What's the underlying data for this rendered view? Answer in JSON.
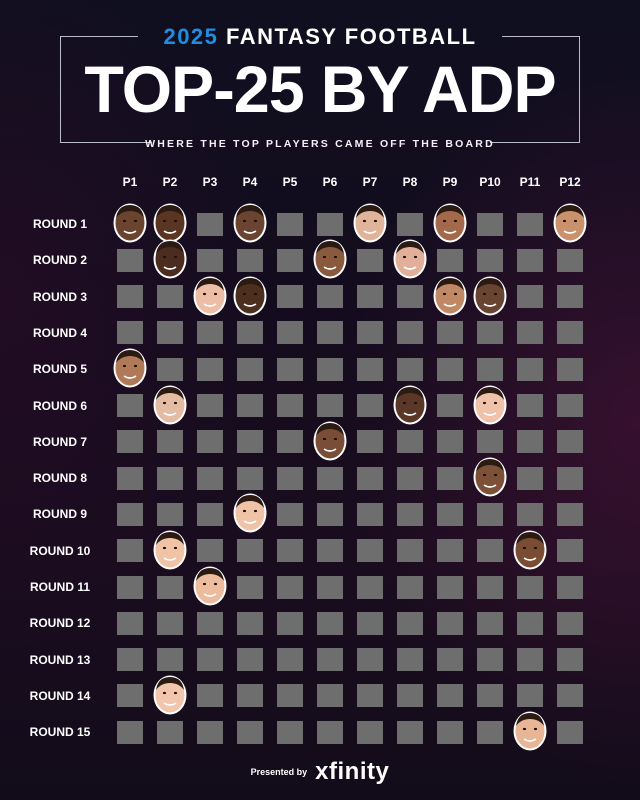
{
  "header": {
    "kicker_year": "2025",
    "kicker_text": "FANTASY FOOTBALL",
    "headline": "TOP-25 BY ADP",
    "subtitle": "WHERE THE TOP PLAYERS CAME OFF THE BOARD",
    "accent_color": "#1f8ee0"
  },
  "board": {
    "columns": [
      "P1",
      "P2",
      "P3",
      "P4",
      "P5",
      "P6",
      "P7",
      "P8",
      "P9",
      "P10",
      "P11",
      "P12"
    ],
    "rows": [
      "ROUND 1",
      "ROUND 2",
      "ROUND 3",
      "ROUND 4",
      "ROUND 5",
      "ROUND 6",
      "ROUND 7",
      "ROUND 8",
      "ROUND 9",
      "ROUND 10",
      "ROUND 11",
      "ROUND 12",
      "ROUND 13",
      "ROUND 14",
      "ROUND 15"
    ],
    "empty_cell_color": "#6e6e6e",
    "picks": [
      {
        "round": 1,
        "pick": 1,
        "icon": "player-headshot",
        "skin": "#6b4430"
      },
      {
        "round": 1,
        "pick": 2,
        "icon": "player-headshot",
        "skin": "#5a3522"
      },
      {
        "round": 1,
        "pick": 4,
        "icon": "player-headshot",
        "skin": "#6a4430"
      },
      {
        "round": 1,
        "pick": 7,
        "icon": "player-headshot",
        "skin": "#e0b49a"
      },
      {
        "round": 1,
        "pick": 9,
        "icon": "player-headshot",
        "skin": "#a3694a"
      },
      {
        "round": 1,
        "pick": 12,
        "icon": "player-headshot",
        "skin": "#c9916c"
      },
      {
        "round": 2,
        "pick": 2,
        "icon": "player-headshot",
        "skin": "#4b2c1e"
      },
      {
        "round": 2,
        "pick": 6,
        "icon": "player-headshot",
        "skin": "#8a5a3e"
      },
      {
        "round": 2,
        "pick": 8,
        "icon": "player-headshot",
        "skin": "#e2b09a"
      },
      {
        "round": 3,
        "pick": 3,
        "icon": "player-headshot",
        "skin": "#eebda6"
      },
      {
        "round": 3,
        "pick": 4,
        "icon": "player-headshot",
        "skin": "#4d2f20"
      },
      {
        "round": 3,
        "pick": 9,
        "icon": "player-headshot",
        "skin": "#c08864"
      },
      {
        "round": 3,
        "pick": 10,
        "icon": "player-headshot",
        "skin": "#6a4432"
      },
      {
        "round": 5,
        "pick": 1,
        "icon": "player-headshot",
        "skin": "#b07a58"
      },
      {
        "round": 6,
        "pick": 2,
        "icon": "player-headshot",
        "skin": "#e4bca4"
      },
      {
        "round": 6,
        "pick": 8,
        "icon": "player-headshot",
        "skin": "#5a3726"
      },
      {
        "round": 6,
        "pick": 10,
        "icon": "player-headshot",
        "skin": "#f0c2aa"
      },
      {
        "round": 7,
        "pick": 6,
        "icon": "player-headshot",
        "skin": "#7a4e36"
      },
      {
        "round": 8,
        "pick": 10,
        "icon": "player-headshot",
        "skin": "#7d5038"
      },
      {
        "round": 9,
        "pick": 4,
        "icon": "player-headshot",
        "skin": "#efc3a8"
      },
      {
        "round": 10,
        "pick": 2,
        "icon": "player-headshot",
        "skin": "#f0c3a6"
      },
      {
        "round": 10,
        "pick": 11,
        "icon": "player-headshot",
        "skin": "#7a4c34"
      },
      {
        "round": 11,
        "pick": 3,
        "icon": "player-headshot",
        "skin": "#edbb9e"
      },
      {
        "round": 14,
        "pick": 2,
        "icon": "player-headshot",
        "skin": "#f2c6ac"
      },
      {
        "round": 15,
        "pick": 11,
        "icon": "player-headshot",
        "skin": "#e8b596"
      }
    ]
  },
  "footer": {
    "presented_by": "Presented by",
    "sponsor": "xfinity"
  }
}
